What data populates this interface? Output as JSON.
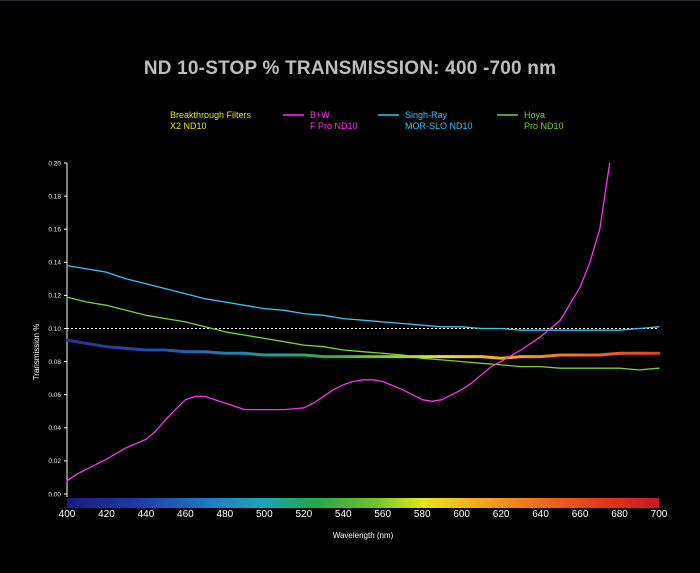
{
  "chart_data": {
    "type": "line",
    "title": "ND 10-STOP % TRANSMISSION: 400 -700 nm",
    "xlabel": "Wavelength (nm)",
    "ylabel": "Transmission %",
    "xlim": [
      400,
      700
    ],
    "ylim": [
      0,
      0.2
    ],
    "x_ticks": [
      "400",
      "420",
      "440",
      "460",
      "480",
      "500",
      "520",
      "540",
      "560",
      "580",
      "600",
      "620",
      "640",
      "660",
      "680",
      "700"
    ],
    "y_ticks": [
      "0.00",
      "0.02",
      "0.04",
      "0.06",
      "0.08",
      "0.10",
      "0.12",
      "0.14",
      "0.16",
      "0.18",
      "0.20"
    ],
    "reference_line": 0.1,
    "series": [
      {
        "name_line1": "Breakthrough Filters",
        "name_line2": "X2 ND10",
        "color": "#e8e800",
        "gradient": true,
        "x": [
          400,
          410,
          420,
          430,
          440,
          450,
          460,
          470,
          480,
          490,
          500,
          510,
          520,
          530,
          540,
          550,
          560,
          570,
          580,
          590,
          600,
          610,
          620,
          630,
          640,
          650,
          660,
          670,
          680,
          690,
          700
        ],
        "y": [
          0.093,
          0.091,
          0.089,
          0.088,
          0.087,
          0.087,
          0.086,
          0.086,
          0.085,
          0.085,
          0.084,
          0.084,
          0.084,
          0.083,
          0.083,
          0.083,
          0.083,
          0.083,
          0.083,
          0.083,
          0.083,
          0.083,
          0.082,
          0.083,
          0.083,
          0.084,
          0.084,
          0.084,
          0.085,
          0.085,
          0.085
        ]
      },
      {
        "name_line1": "B+W",
        "name_line2": "F Pro ND10",
        "color": "#ff2ff2",
        "gradient": false,
        "x": [
          400,
          405,
          410,
          420,
          430,
          440,
          445,
          450,
          455,
          460,
          465,
          470,
          475,
          480,
          485,
          490,
          500,
          510,
          520,
          525,
          530,
          535,
          540,
          545,
          550,
          555,
          560,
          570,
          580,
          585,
          590,
          595,
          600,
          605,
          610,
          615,
          620,
          630,
          640,
          650,
          655,
          660,
          665,
          670,
          675
        ],
        "y": [
          0.008,
          0.012,
          0.015,
          0.021,
          0.028,
          0.033,
          0.038,
          0.045,
          0.051,
          0.057,
          0.059,
          0.059,
          0.057,
          0.055,
          0.053,
          0.051,
          0.051,
          0.051,
          0.052,
          0.055,
          0.059,
          0.063,
          0.066,
          0.068,
          0.069,
          0.069,
          0.068,
          0.063,
          0.057,
          0.056,
          0.057,
          0.06,
          0.063,
          0.067,
          0.072,
          0.077,
          0.08,
          0.087,
          0.095,
          0.105,
          0.115,
          0.125,
          0.14,
          0.16,
          0.2
        ]
      },
      {
        "name_line1": "Singh-Ray",
        "name_line2": "MOR-SLO ND10",
        "color": "#2ec8f5",
        "gradient": false,
        "x": [
          400,
          410,
          420,
          430,
          440,
          450,
          460,
          470,
          480,
          490,
          500,
          510,
          520,
          530,
          540,
          550,
          560,
          570,
          580,
          590,
          600,
          610,
          620,
          630,
          640,
          650,
          660,
          670,
          680,
          690,
          700
        ],
        "y": [
          0.138,
          0.136,
          0.134,
          0.13,
          0.127,
          0.124,
          0.121,
          0.118,
          0.116,
          0.114,
          0.112,
          0.111,
          0.109,
          0.108,
          0.106,
          0.105,
          0.104,
          0.103,
          0.102,
          0.101,
          0.101,
          0.1,
          0.1,
          0.099,
          0.099,
          0.099,
          0.099,
          0.099,
          0.099,
          0.1,
          0.101
        ]
      },
      {
        "name_line1": "Hoya",
        "name_line2": "Pro ND10",
        "color": "#79d42c",
        "gradient": false,
        "x": [
          400,
          410,
          420,
          430,
          440,
          450,
          460,
          470,
          480,
          490,
          500,
          510,
          520,
          530,
          540,
          550,
          560,
          570,
          580,
          590,
          600,
          610,
          620,
          630,
          640,
          650,
          660,
          670,
          680,
          690,
          700
        ],
        "y": [
          0.119,
          0.116,
          0.114,
          0.111,
          0.108,
          0.106,
          0.104,
          0.101,
          0.098,
          0.096,
          0.094,
          0.092,
          0.09,
          0.089,
          0.087,
          0.086,
          0.085,
          0.084,
          0.082,
          0.081,
          0.08,
          0.079,
          0.078,
          0.077,
          0.077,
          0.076,
          0.076,
          0.076,
          0.076,
          0.075,
          0.076
        ]
      }
    ]
  }
}
